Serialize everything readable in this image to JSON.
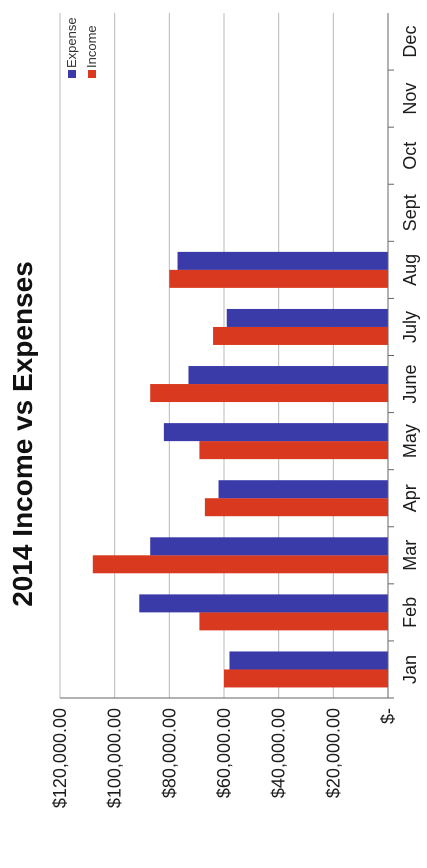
{
  "chart_data": {
    "type": "bar",
    "orientation": "rotated-90",
    "title": "2014 Income vs Expenses",
    "xlabel": "",
    "ylabel": "",
    "categories": [
      "Jan",
      "Feb",
      "Mar",
      "Apr",
      "May",
      "June",
      "July",
      "Aug",
      "Sept",
      "Oct",
      "Nov",
      "Dec"
    ],
    "series": [
      {
        "name": "Income",
        "color": "#d93a1f",
        "values": [
          60000,
          69000,
          108000,
          67000,
          69000,
          87000,
          64000,
          80000,
          null,
          null,
          null,
          null
        ]
      },
      {
        "name": "Expense",
        "color": "#3a3aa8",
        "values": [
          58000,
          91000,
          87000,
          62000,
          82000,
          73000,
          59000,
          77000,
          null,
          null,
          null,
          null
        ]
      }
    ],
    "ylim": [
      0,
      120000
    ],
    "yticks": [
      {
        "value": 120000,
        "label": "$120,000.00"
      },
      {
        "value": 100000,
        "label": "$100,000.00"
      },
      {
        "value": 80000,
        "label": "$80,000.00"
      },
      {
        "value": 60000,
        "label": "$60,000.00"
      },
      {
        "value": 40000,
        "label": "$40,000.00"
      },
      {
        "value": 20000,
        "label": "$20,000.00"
      },
      {
        "value": 0,
        "label": "$-"
      }
    ],
    "grid": true,
    "legend": "top-right"
  }
}
